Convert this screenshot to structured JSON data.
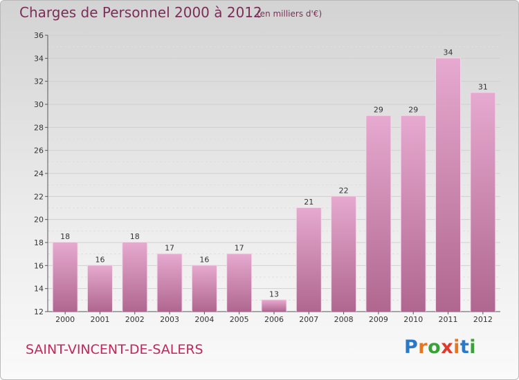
{
  "title": "Charges de Personnel 2000 à 2012",
  "subtitle": "(en milliers d'€)",
  "commune": "SAINT-VINCENT-DE-SALERS",
  "logo": {
    "text": "Proxiti",
    "letter_colors": [
      "#2a78c8",
      "#e8761e",
      "#3aa13a",
      "#e03a2a",
      "#e8761e",
      "#2a78c8",
      "#3aa13a"
    ]
  },
  "colors": {
    "bar_top": "#e6a9cf",
    "bar_bottom": "#b0678f",
    "title": "#7a2e57",
    "commune": "#c4255a"
  },
  "chart_data": {
    "type": "bar",
    "title": "Charges de Personnel 2000 à 2012",
    "subtitle": "(en milliers d'€)",
    "categories": [
      "2000",
      "2001",
      "2002",
      "2003",
      "2004",
      "2005",
      "2006",
      "2007",
      "2008",
      "2009",
      "2010",
      "2011",
      "2012"
    ],
    "values": [
      18,
      16,
      18,
      17,
      16,
      17,
      13,
      21,
      22,
      29,
      29,
      34,
      31
    ],
    "ylim": [
      12,
      36
    ],
    "yticks": [
      12,
      14,
      16,
      18,
      20,
      22,
      24,
      26,
      28,
      30,
      32,
      34,
      36
    ],
    "grid": true,
    "data_labels": true
  }
}
